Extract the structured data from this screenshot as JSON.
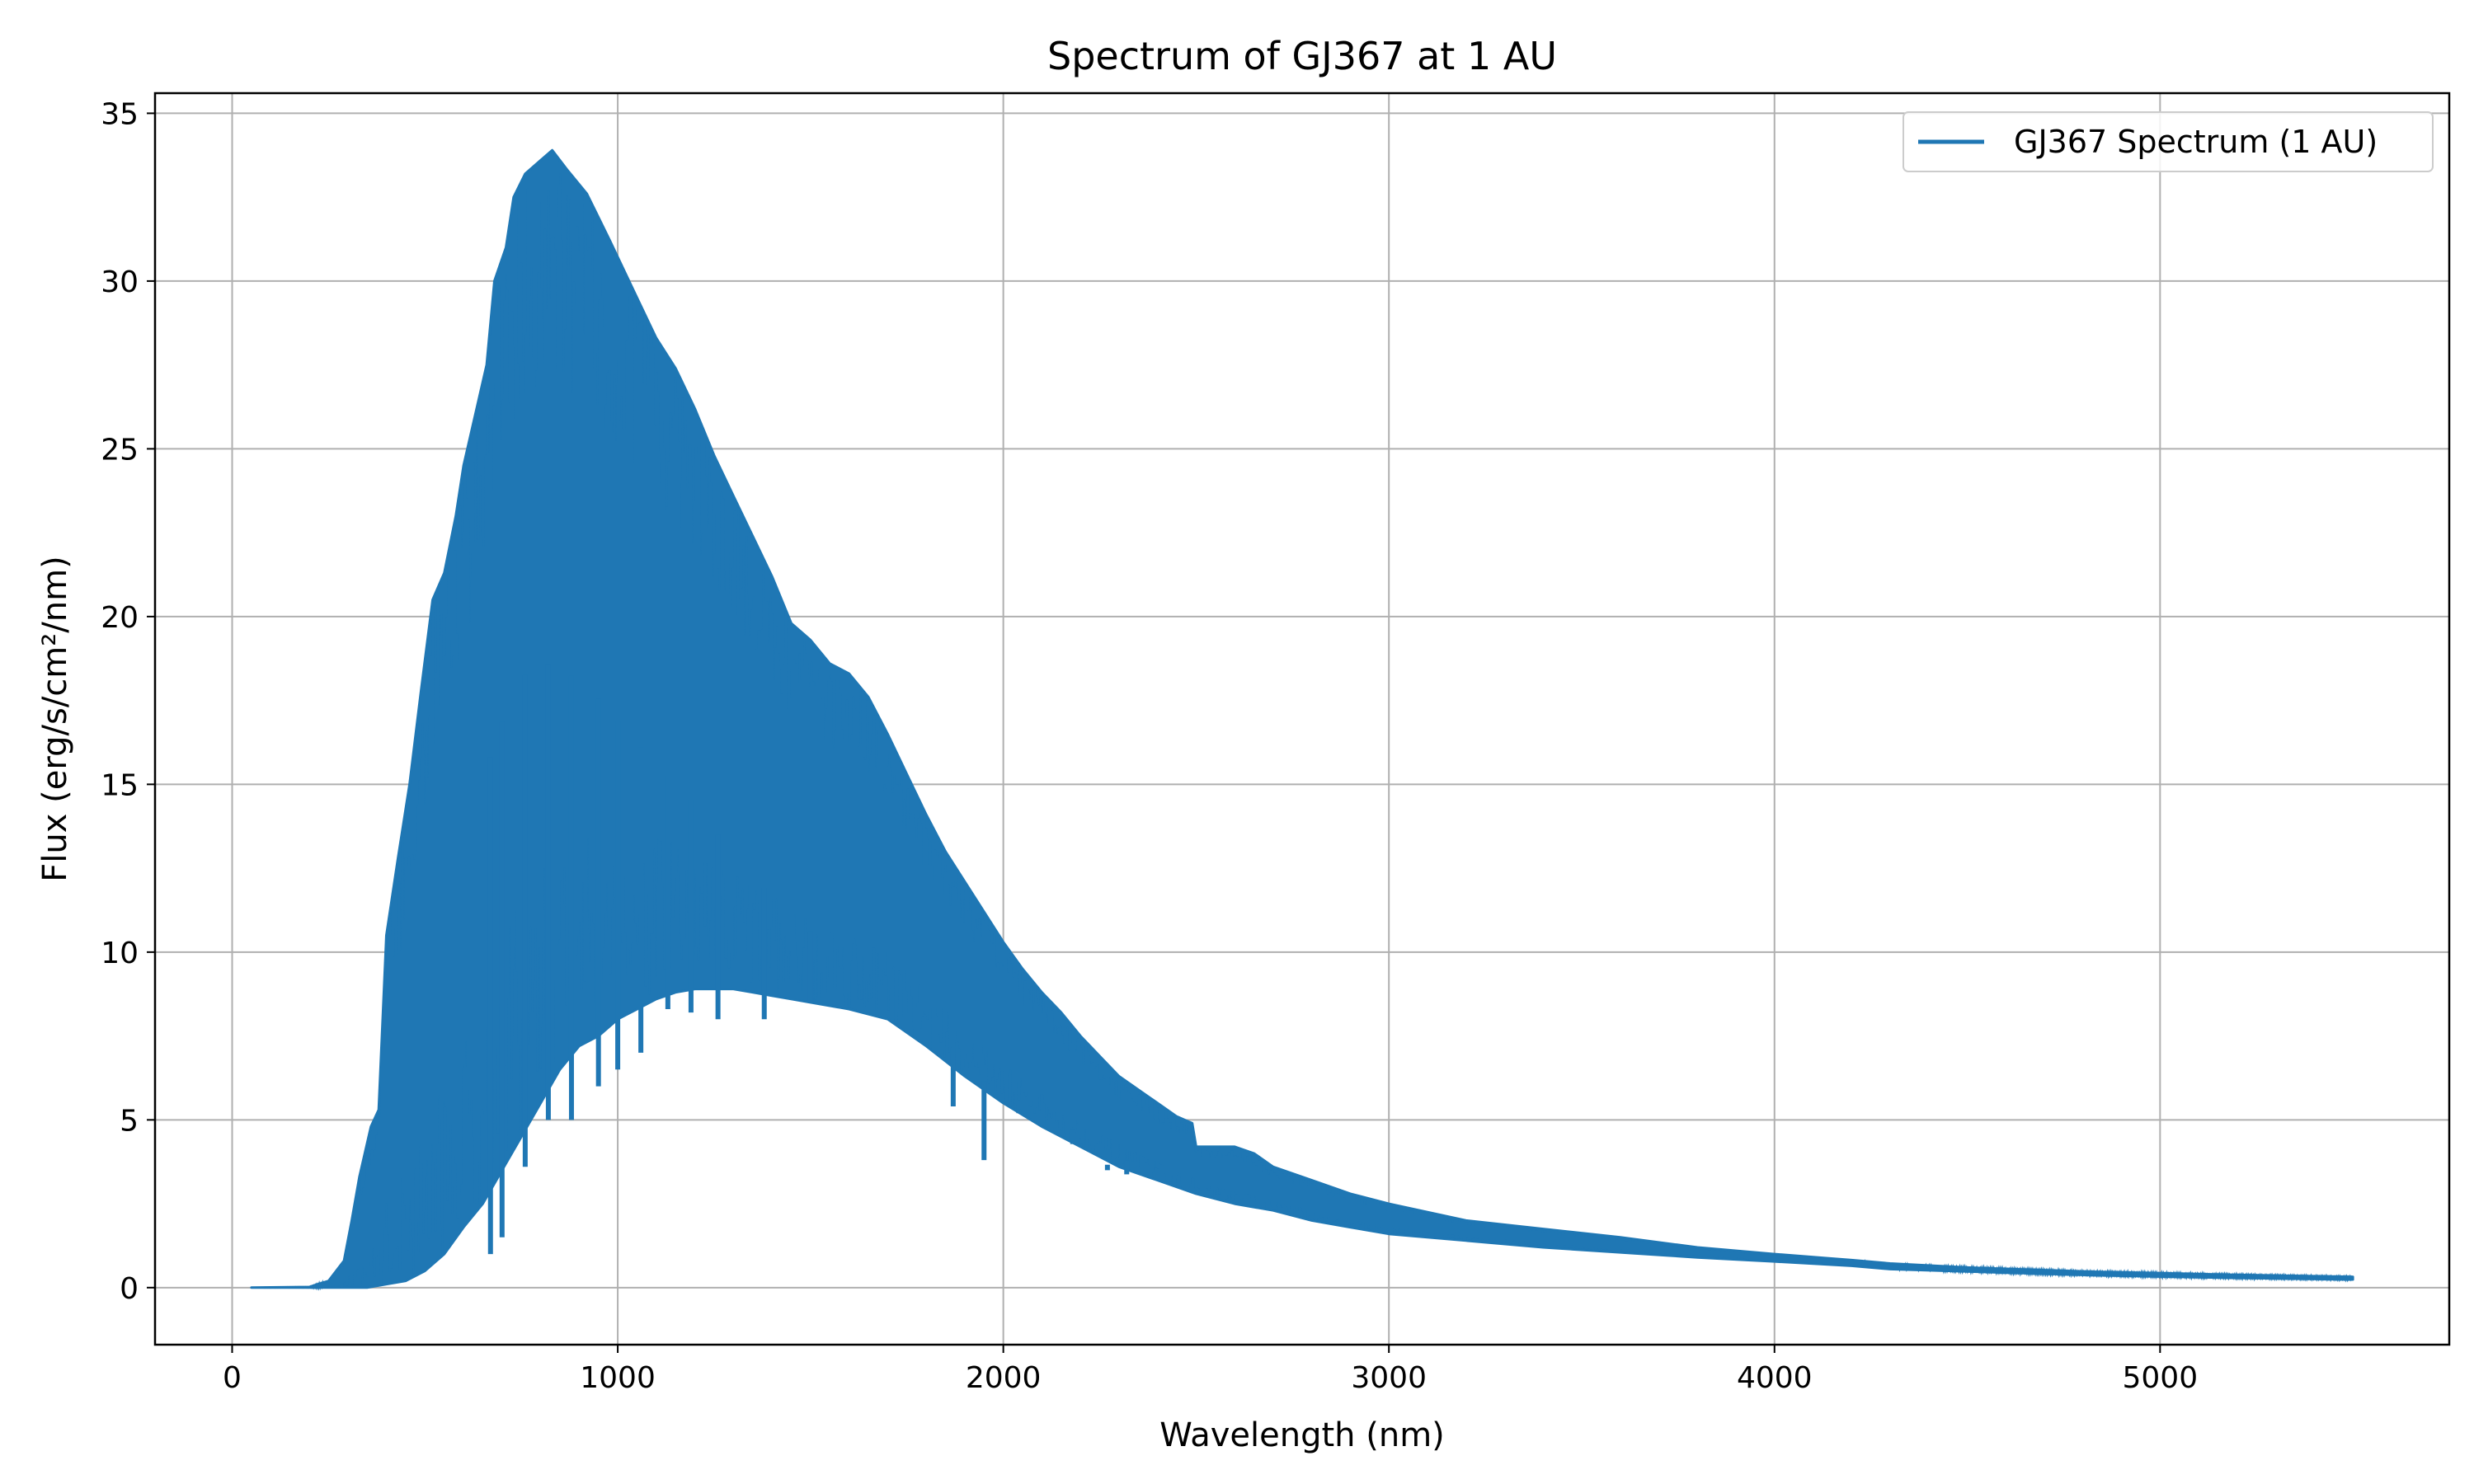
{
  "chart_data": {
    "type": "line",
    "title": "Spectrum of GJ367 at 1 AU",
    "xlabel": "Wavelength (nm)",
    "ylabel": "Flux (erg/s/cm²/nm)",
    "xlim": [
      -200,
      5750
    ],
    "ylim": [
      -1.7,
      35.6
    ],
    "xticks": [
      0,
      1000,
      2000,
      3000,
      4000,
      5000
    ],
    "yticks": [
      0,
      5,
      10,
      15,
      20,
      25,
      30,
      35
    ],
    "grid": true,
    "legend_position": "top-right",
    "series": [
      {
        "name": "GJ367 Spectrum (1 AU)",
        "color": "#1f77b4",
        "envelope_upper": [
          [
            50,
            0
          ],
          [
            200,
            0.02
          ],
          [
            250,
            0.2
          ],
          [
            290,
            0.8
          ],
          [
            310,
            2.0
          ],
          [
            330,
            3.3
          ],
          [
            360,
            4.8
          ],
          [
            380,
            5.3
          ],
          [
            400,
            10.5
          ],
          [
            430,
            12.8
          ],
          [
            460,
            15.0
          ],
          [
            490,
            17.8
          ],
          [
            520,
            20.5
          ],
          [
            550,
            21.3
          ],
          [
            580,
            23.0
          ],
          [
            600,
            24.5
          ],
          [
            630,
            26.0
          ],
          [
            660,
            27.5
          ],
          [
            680,
            30.0
          ],
          [
            710,
            31.0
          ],
          [
            730,
            32.5
          ],
          [
            760,
            33.2
          ],
          [
            800,
            33.6
          ],
          [
            830,
            33.9
          ],
          [
            870,
            33.3
          ],
          [
            920,
            32.6
          ],
          [
            980,
            31.2
          ],
          [
            1050,
            29.5
          ],
          [
            1100,
            28.3
          ],
          [
            1150,
            27.4
          ],
          [
            1200,
            26.2
          ],
          [
            1250,
            24.8
          ],
          [
            1300,
            23.6
          ],
          [
            1350,
            22.4
          ],
          [
            1400,
            21.2
          ],
          [
            1450,
            19.8
          ],
          [
            1500,
            19.3
          ],
          [
            1550,
            18.6
          ],
          [
            1600,
            18.3
          ],
          [
            1650,
            17.6
          ],
          [
            1700,
            16.5
          ],
          [
            1750,
            15.3
          ],
          [
            1800,
            14.1
          ],
          [
            1850,
            13.0
          ],
          [
            1900,
            12.1
          ],
          [
            1950,
            11.2
          ],
          [
            2000,
            10.3
          ],
          [
            2050,
            9.5
          ],
          [
            2100,
            8.8
          ],
          [
            2150,
            8.2
          ],
          [
            2200,
            7.5
          ],
          [
            2250,
            6.9
          ],
          [
            2300,
            6.3
          ],
          [
            2350,
            5.9
          ],
          [
            2400,
            5.5
          ],
          [
            2450,
            5.1
          ],
          [
            2490,
            4.9
          ],
          [
            2500,
            4.2
          ],
          [
            2600,
            4.2
          ],
          [
            2650,
            4.0
          ],
          [
            2700,
            3.6
          ],
          [
            2800,
            3.2
          ],
          [
            2900,
            2.8
          ],
          [
            3000,
            2.5
          ],
          [
            3200,
            2.0
          ],
          [
            3400,
            1.75
          ],
          [
            3600,
            1.5
          ],
          [
            3800,
            1.2
          ],
          [
            4000,
            1.0
          ],
          [
            4200,
            0.82
          ],
          [
            4300,
            0.72
          ],
          [
            4500,
            0.6
          ],
          [
            4800,
            0.48
          ],
          [
            5000,
            0.43
          ],
          [
            5200,
            0.38
          ],
          [
            5500,
            0.32
          ]
        ],
        "envelope_lower": [
          [
            50,
            0
          ],
          [
            250,
            0
          ],
          [
            350,
            0
          ],
          [
            400,
            0.1
          ],
          [
            450,
            0.2
          ],
          [
            500,
            0.5
          ],
          [
            550,
            1.0
          ],
          [
            600,
            1.8
          ],
          [
            650,
            2.5
          ],
          [
            700,
            3.5
          ],
          [
            750,
            4.5
          ],
          [
            800,
            5.5
          ],
          [
            850,
            6.5
          ],
          [
            900,
            7.2
          ],
          [
            950,
            7.5
          ],
          [
            1000,
            8.0
          ],
          [
            1050,
            8.3
          ],
          [
            1100,
            8.6
          ],
          [
            1150,
            8.8
          ],
          [
            1200,
            8.9
          ],
          [
            1250,
            8.9
          ],
          [
            1300,
            8.9
          ],
          [
            1350,
            8.8
          ],
          [
            1400,
            8.7
          ],
          [
            1450,
            8.6
          ],
          [
            1500,
            8.5
          ],
          [
            1600,
            8.3
          ],
          [
            1700,
            8.0
          ],
          [
            1800,
            7.2
          ],
          [
            1900,
            6.3
          ],
          [
            2000,
            5.5
          ],
          [
            2100,
            4.8
          ],
          [
            2200,
            4.2
          ],
          [
            2300,
            3.6
          ],
          [
            2400,
            3.2
          ],
          [
            2500,
            2.8
          ],
          [
            2600,
            2.5
          ],
          [
            2700,
            2.3
          ],
          [
            2800,
            2.0
          ],
          [
            2900,
            1.8
          ],
          [
            3000,
            1.6
          ],
          [
            3200,
            1.4
          ],
          [
            3400,
            1.2
          ],
          [
            3600,
            1.05
          ],
          [
            3800,
            0.9
          ],
          [
            4000,
            0.78
          ],
          [
            4200,
            0.65
          ],
          [
            4300,
            0.55
          ],
          [
            4500,
            0.48
          ],
          [
            4800,
            0.38
          ],
          [
            5000,
            0.33
          ],
          [
            5200,
            0.29
          ],
          [
            5500,
            0.24
          ]
        ],
        "absorption_dips": [
          [
            670,
            1.0
          ],
          [
            700,
            1.5
          ],
          [
            760,
            3.6
          ],
          [
            820,
            5.0
          ],
          [
            880,
            5.0
          ],
          [
            950,
            6.0
          ],
          [
            1000,
            6.5
          ],
          [
            1060,
            7.0
          ],
          [
            1130,
            8.3
          ],
          [
            1190,
            8.2
          ],
          [
            1260,
            8.0
          ],
          [
            1380,
            8.0
          ],
          [
            1500,
            8.5
          ],
          [
            1870,
            5.4
          ],
          [
            1950,
            3.8
          ],
          [
            2040,
            5.2
          ],
          [
            2180,
            4.7
          ],
          [
            2270,
            3.5
          ],
          [
            2320,
            3.8
          ]
        ]
      }
    ]
  }
}
